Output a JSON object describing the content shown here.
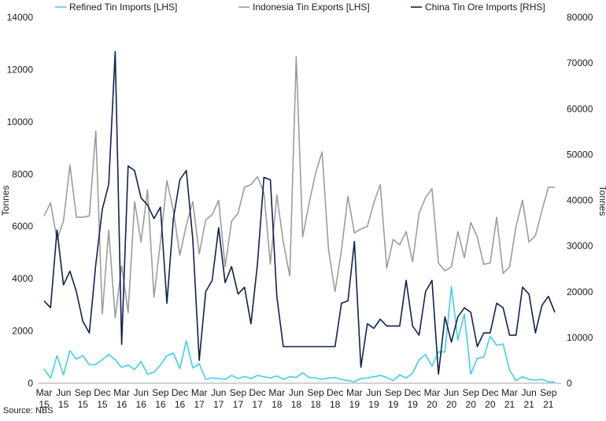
{
  "chart_data": {
    "type": "line",
    "source": "Source: NBS",
    "ylabel_left": "Tonnes",
    "ylabel_right": "Tonnes",
    "ylim_left": [
      0,
      14000
    ],
    "ylim_right": [
      0,
      80000
    ],
    "yticks_left": [
      "0",
      "2000",
      "4000",
      "6000",
      "8000",
      "10000",
      "12000",
      "14000"
    ],
    "yticks_right": [
      "0",
      "10000",
      "20000",
      "30000",
      "40000",
      "50000",
      "60000",
      "70000",
      "80000"
    ],
    "grid": false,
    "legend_position": "top",
    "x_tick_labels": [
      {
        "month": "Mar",
        "year": "15",
        "index": 0
      },
      {
        "month": "Jun",
        "year": "15",
        "index": 3
      },
      {
        "month": "Sep",
        "year": "15",
        "index": 6
      },
      {
        "month": "Dec",
        "year": "15",
        "index": 9
      },
      {
        "month": "Mar",
        "year": "16",
        "index": 12
      },
      {
        "month": "Jun",
        "year": "16",
        "index": 15
      },
      {
        "month": "Sep",
        "year": "16",
        "index": 18
      },
      {
        "month": "Dec",
        "year": "16",
        "index": 21
      },
      {
        "month": "Mar",
        "year": "17",
        "index": 24
      },
      {
        "month": "Jun",
        "year": "17",
        "index": 27
      },
      {
        "month": "Sep",
        "year": "17",
        "index": 30
      },
      {
        "month": "Dec",
        "year": "17",
        "index": 33
      },
      {
        "month": "Mar",
        "year": "18",
        "index": 36
      },
      {
        "month": "Jun",
        "year": "18",
        "index": 39
      },
      {
        "month": "Sep",
        "year": "18",
        "index": 42
      },
      {
        "month": "Dec",
        "year": "18",
        "index": 45
      },
      {
        "month": "Mar",
        "year": "19",
        "index": 48
      },
      {
        "month": "Jun",
        "year": "19",
        "index": 51
      },
      {
        "month": "Sep",
        "year": "19",
        "index": 54
      },
      {
        "month": "Dec",
        "year": "19",
        "index": 57
      },
      {
        "month": "Mar",
        "year": "20",
        "index": 60
      },
      {
        "month": "Jun",
        "year": "20",
        "index": 63
      },
      {
        "month": "Sep",
        "year": "20",
        "index": 66
      },
      {
        "month": "Dec",
        "year": "20",
        "index": 69
      },
      {
        "month": "Mar",
        "year": "21",
        "index": 72
      },
      {
        "month": "Jun",
        "year": "21",
        "index": 75
      },
      {
        "month": "Sep",
        "year": "21",
        "index": 78
      }
    ],
    "series": [
      {
        "name": "Refined Tin Imports [LHS]",
        "axis": "left",
        "color": "#3fd1e6",
        "values": [
          550,
          200,
          1050,
          320,
          1250,
          920,
          1060,
          700,
          720,
          900,
          1100,
          900,
          600,
          700,
          520,
          830,
          350,
          420,
          700,
          1050,
          1150,
          560,
          1620,
          580,
          750,
          150,
          200,
          180,
          150,
          300,
          180,
          260,
          180,
          300,
          250,
          200,
          280,
          150,
          250,
          220,
          400,
          220,
          200,
          150,
          200,
          220,
          150,
          100,
          60,
          180,
          200,
          250,
          300,
          220,
          100,
          320,
          200,
          380,
          900,
          1100,
          650,
          1200,
          1200,
          3700,
          1650,
          2650,
          350,
          950,
          1000,
          1800,
          1450,
          1500,
          500,
          100,
          250,
          150,
          120,
          150,
          50,
          50
        ]
      },
      {
        "name": "Indonesia Tin Exports [LHS]",
        "axis": "left",
        "color": "#9c9c9c",
        "values": [
          6400,
          6900,
          5500,
          6200,
          8350,
          6350,
          6350,
          6400,
          9650,
          2650,
          5850,
          2500,
          4500,
          2700,
          6950,
          5400,
          7400,
          3300,
          5400,
          7750,
          6600,
          4900,
          6050,
          6950,
          4950,
          6250,
          6450,
          7000,
          4450,
          6200,
          6500,
          7500,
          7600,
          7900,
          7300,
          4550,
          7200,
          5400,
          4100,
          12500,
          5600,
          6900,
          8050,
          8850,
          5100,
          3500,
          5100,
          7150,
          5750,
          5900,
          6000,
          6900,
          7600,
          4400,
          5500,
          5300,
          5800,
          4650,
          6500,
          7100,
          7450,
          4600,
          4300,
          4450,
          5800,
          4800,
          6150,
          5600,
          4550,
          4600,
          6350,
          4200,
          4450,
          6000,
          7000,
          5400,
          5650,
          6600,
          7500,
          7500
        ]
      },
      {
        "name": "China Tin Ore Imports [RHS]",
        "axis": "right",
        "color": "#0d2250",
        "values": [
          18000,
          16500,
          33500,
          21500,
          24500,
          20000,
          13500,
          11000,
          26000,
          38000,
          43500,
          72500,
          8500,
          47500,
          46500,
          40500,
          39000,
          36000,
          38500,
          17500,
          36000,
          44500,
          46500,
          31500,
          5000,
          20000,
          22500,
          34000,
          22000,
          25500,
          19500,
          21000,
          13000,
          26000,
          45000,
          44500,
          19000,
          8000,
          8000,
          8000,
          8000,
          8000,
          8000,
          8000,
          8000,
          8000,
          17500,
          18000,
          31000,
          3500,
          13000,
          12000,
          14000,
          12500,
          12500,
          12500,
          22500,
          12500,
          10500,
          20000,
          22500,
          2000,
          14500,
          9000,
          14500,
          16500,
          15500,
          8000,
          11000,
          11000,
          17500,
          16500,
          10500,
          10500,
          21000,
          19500,
          11000,
          17000,
          19000,
          15500
        ]
      }
    ]
  }
}
